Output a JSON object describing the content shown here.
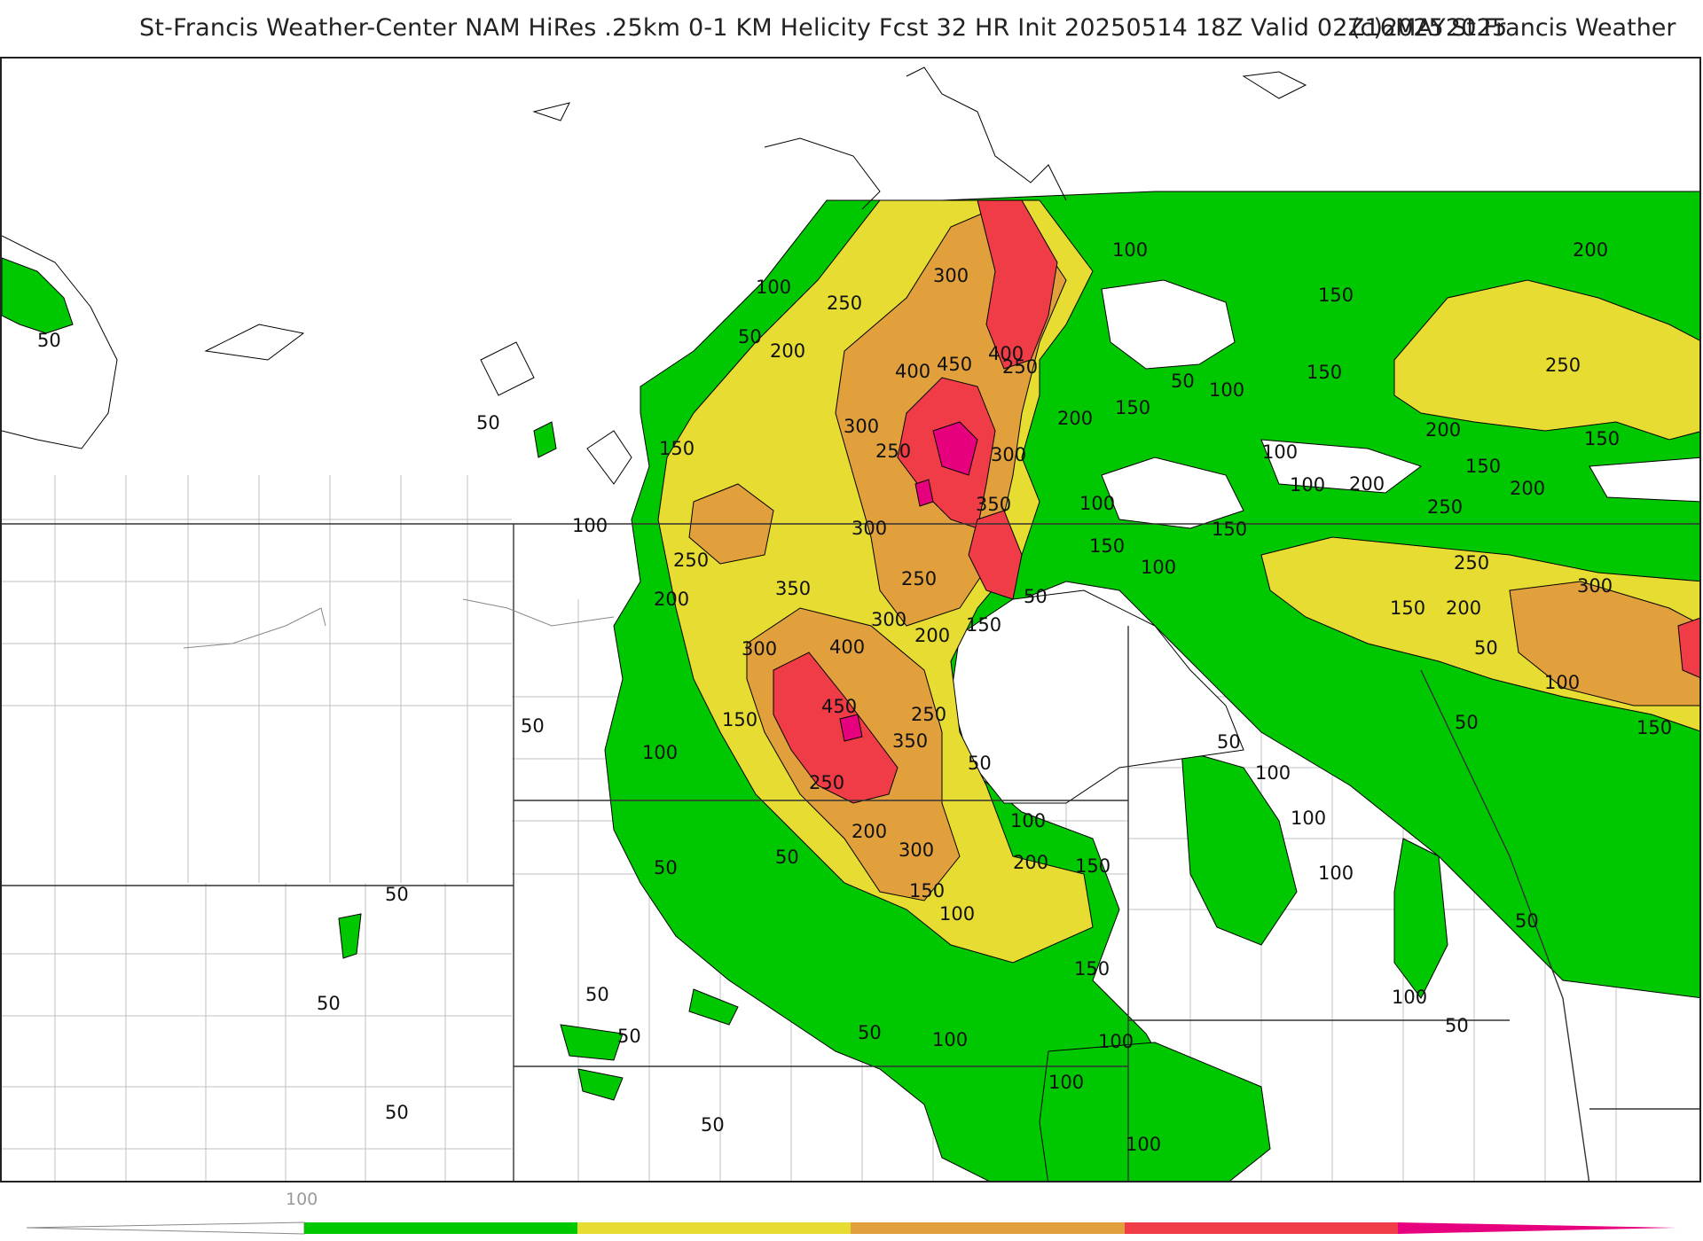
{
  "header": {
    "title": "St-Francis Weather-Center NAM HiRes .25km 0-1 KM Helicity Fcst 32 HR Init 20250514 18Z  Valid 02Z16MAY2025",
    "copyright": "(c)2025 St.Francis Weather"
  },
  "colors": {
    "level_100_150": "#00c800",
    "level_200_250": "#e6dc32",
    "level_300_350": "#e1a03c",
    "level_400_450": "#f03c46",
    "level_500_plus": "#e6007d",
    "land_boundary": "#000000",
    "county_line": "#b4b4b4",
    "state_line": "#333333"
  },
  "map": {
    "variable": "0-1 KM Helicity",
    "contour_labels": [
      "50",
      "100",
      "150",
      "200",
      "250",
      "300",
      "350",
      "400",
      "450"
    ]
  },
  "colorbar": {
    "tick_label": "100",
    "bands": [
      "#00c800",
      "#e6dc32",
      "#e1a03c",
      "#f03c46",
      "#e6007d"
    ]
  }
}
